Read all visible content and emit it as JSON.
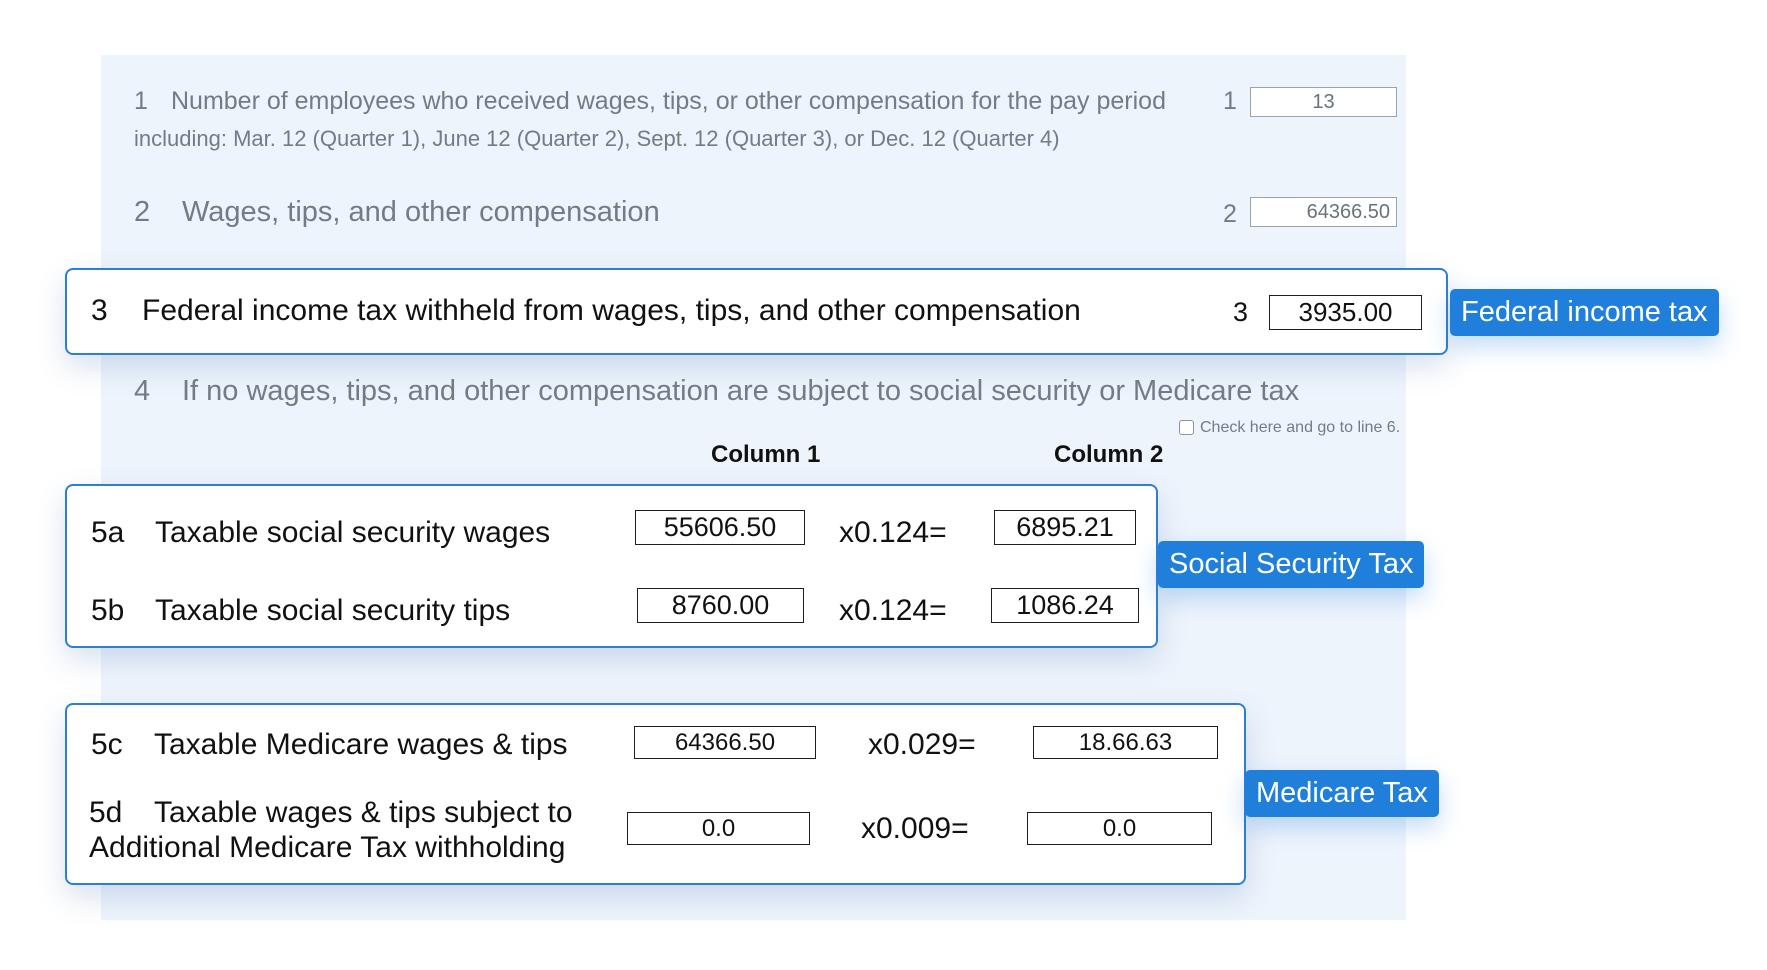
{
  "line1": {
    "num": "1",
    "label": "Number of employees who received wages, tips, or other compensation for the pay period",
    "sublabel": "including: Mar. 12 (Quarter 1), June 12 (Quarter 2), Sept. 12 (Quarter 3), or Dec. 12 (Quarter 4)",
    "box_num": "1",
    "value": "13"
  },
  "line2": {
    "num": "2",
    "label": "Wages, tips, and other compensation",
    "box_num": "2",
    "value": "64366.50"
  },
  "line3": {
    "num": "3",
    "label": "Federal income tax withheld from wages, tips, and other compensation",
    "box_num": "3",
    "value": "3935.00",
    "tag": "Federal income tax"
  },
  "line4": {
    "num": "4",
    "label": "If no wages, tips, and other compensation are subject to social security or Medicare tax",
    "checkbox_label": "Check here and go to line 6."
  },
  "columns": {
    "col1": "Column 1",
    "col2": "Column 2"
  },
  "social_security": {
    "tag": "Social Security Tax",
    "rows": [
      {
        "num": "5a",
        "label": "Taxable social security wages",
        "col1": "55606.50",
        "multiplier": "x0.124=",
        "col2": "6895.21"
      },
      {
        "num": "5b",
        "label": "Taxable social security tips",
        "col1": "8760.00",
        "multiplier": "x0.124=",
        "col2": "1086.24"
      }
    ]
  },
  "medicare": {
    "tag": "Medicare Tax",
    "rows": [
      {
        "num": "5c",
        "label": "Taxable Medicare wages & tips",
        "col1": "64366.50",
        "multiplier": "x0.029=",
        "col2": "18.66.63"
      },
      {
        "num": "5d",
        "label_line1": "Taxable wages & tips subject to",
        "label_line2": "Additional Medicare Tax withholding",
        "col1": "0.0",
        "multiplier": "x0.009=",
        "col2": "0.0"
      }
    ]
  },
  "colors": {
    "accent": "#1f7fdb",
    "card_border": "#2d7fd6",
    "form_bg": "#eef4fc",
    "muted_text": "#737b86"
  }
}
